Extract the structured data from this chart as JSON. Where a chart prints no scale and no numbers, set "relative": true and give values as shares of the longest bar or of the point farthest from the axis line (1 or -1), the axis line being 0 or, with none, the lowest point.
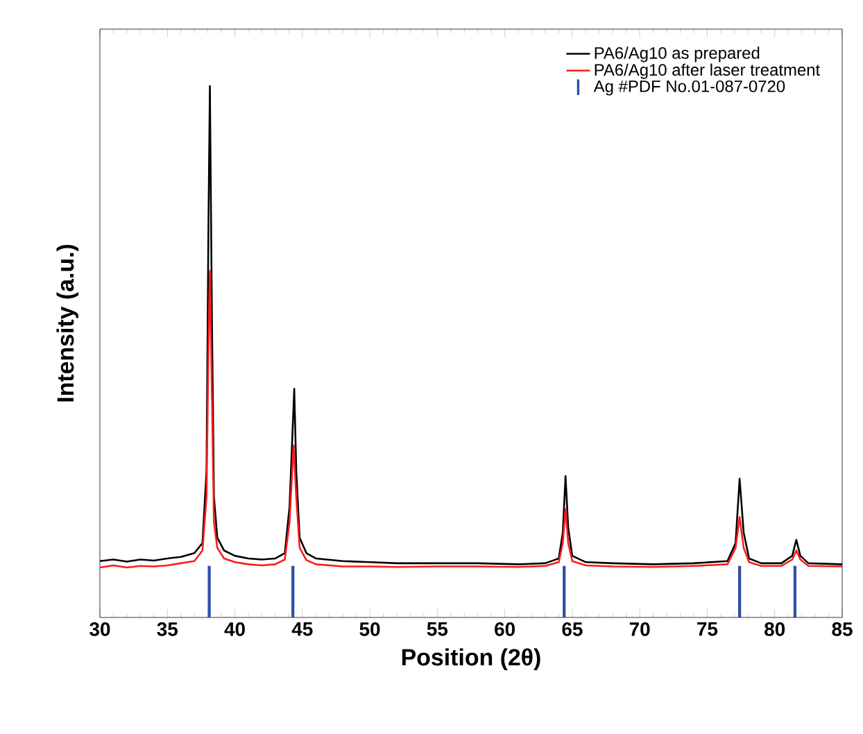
{
  "chart_data": {
    "type": "line",
    "xlabel": "Position (2θ)",
    "ylabel": "Intensity (a.u.)",
    "relative": true,
    "legend": "top right",
    "grid": false,
    "marker": "none",
    "line_style": "solid",
    "xlim": [
      30,
      85
    ],
    "xticks": [
      30,
      35,
      40,
      45,
      50,
      55,
      60,
      65,
      70,
      75,
      80,
      85
    ],
    "series": [
      {
        "name": "PA6/Ag10 as prepared",
        "color": "#000000",
        "x": [
          30,
          31,
          32,
          33,
          34,
          35,
          36,
          37,
          37.6,
          37.9,
          38.05,
          38.15,
          38.3,
          38.45,
          38.7,
          39.2,
          40,
          41,
          42,
          43,
          43.7,
          44.05,
          44.4,
          44.55,
          44.8,
          45.3,
          46,
          48,
          50,
          52,
          55,
          58,
          61,
          63,
          64,
          64.3,
          64.5,
          64.7,
          65,
          66,
          68,
          71,
          74,
          76.5,
          77.1,
          77.4,
          77.7,
          78.1,
          79,
          80.5,
          81.3,
          81.6,
          81.9,
          82.5,
          85
        ],
        "values": [
          0.106,
          0.109,
          0.105,
          0.109,
          0.107,
          0.111,
          0.114,
          0.121,
          0.14,
          0.276,
          0.759,
          1.0,
          0.565,
          0.227,
          0.15,
          0.126,
          0.116,
          0.111,
          0.109,
          0.111,
          0.121,
          0.208,
          0.43,
          0.276,
          0.15,
          0.121,
          0.111,
          0.106,
          0.104,
          0.102,
          0.102,
          0.102,
          0.1,
          0.102,
          0.111,
          0.16,
          0.266,
          0.169,
          0.116,
          0.104,
          0.102,
          0.1,
          0.102,
          0.106,
          0.14,
          0.261,
          0.16,
          0.111,
          0.102,
          0.102,
          0.116,
          0.146,
          0.116,
          0.102,
          0.1
        ]
      },
      {
        "name": "PA6/Ag10 after laser treatment",
        "color": "#ff1a1a",
        "x": [
          30,
          31,
          32,
          33,
          34,
          35,
          36,
          37,
          37.6,
          37.9,
          38.05,
          38.15,
          38.3,
          38.45,
          38.7,
          39.2,
          40,
          41,
          42,
          43,
          43.7,
          44.05,
          44.35,
          44.55,
          44.8,
          45.3,
          46,
          48,
          50,
          52,
          55,
          58,
          61,
          63,
          64,
          64.3,
          64.5,
          64.7,
          65,
          66,
          68,
          71,
          74,
          76.5,
          77.1,
          77.4,
          77.7,
          78.1,
          79,
          80.5,
          81.3,
          81.6,
          81.9,
          82.5,
          85
        ],
        "values": [
          0.094,
          0.098,
          0.094,
          0.097,
          0.096,
          0.098,
          0.102,
          0.106,
          0.126,
          0.227,
          0.517,
          0.652,
          0.42,
          0.179,
          0.131,
          0.111,
          0.104,
          0.1,
          0.098,
          0.1,
          0.109,
          0.179,
          0.324,
          0.227,
          0.131,
          0.108,
          0.1,
          0.096,
          0.096,
          0.095,
          0.096,
          0.096,
          0.095,
          0.097,
          0.104,
          0.14,
          0.204,
          0.14,
          0.106,
          0.098,
          0.096,
          0.095,
          0.097,
          0.1,
          0.131,
          0.189,
          0.131,
          0.104,
          0.097,
          0.097,
          0.109,
          0.126,
          0.109,
          0.097,
          0.096
        ]
      },
      {
        "name": "Ag #PDF No.01-087-0720",
        "type": "bar",
        "color": "#2f4fa8",
        "x": [
          38.1,
          44.3,
          64.4,
          77.4,
          81.5
        ],
        "values": [
          0.097,
          0.097,
          0.097,
          0.097,
          0.097
        ]
      }
    ]
  }
}
